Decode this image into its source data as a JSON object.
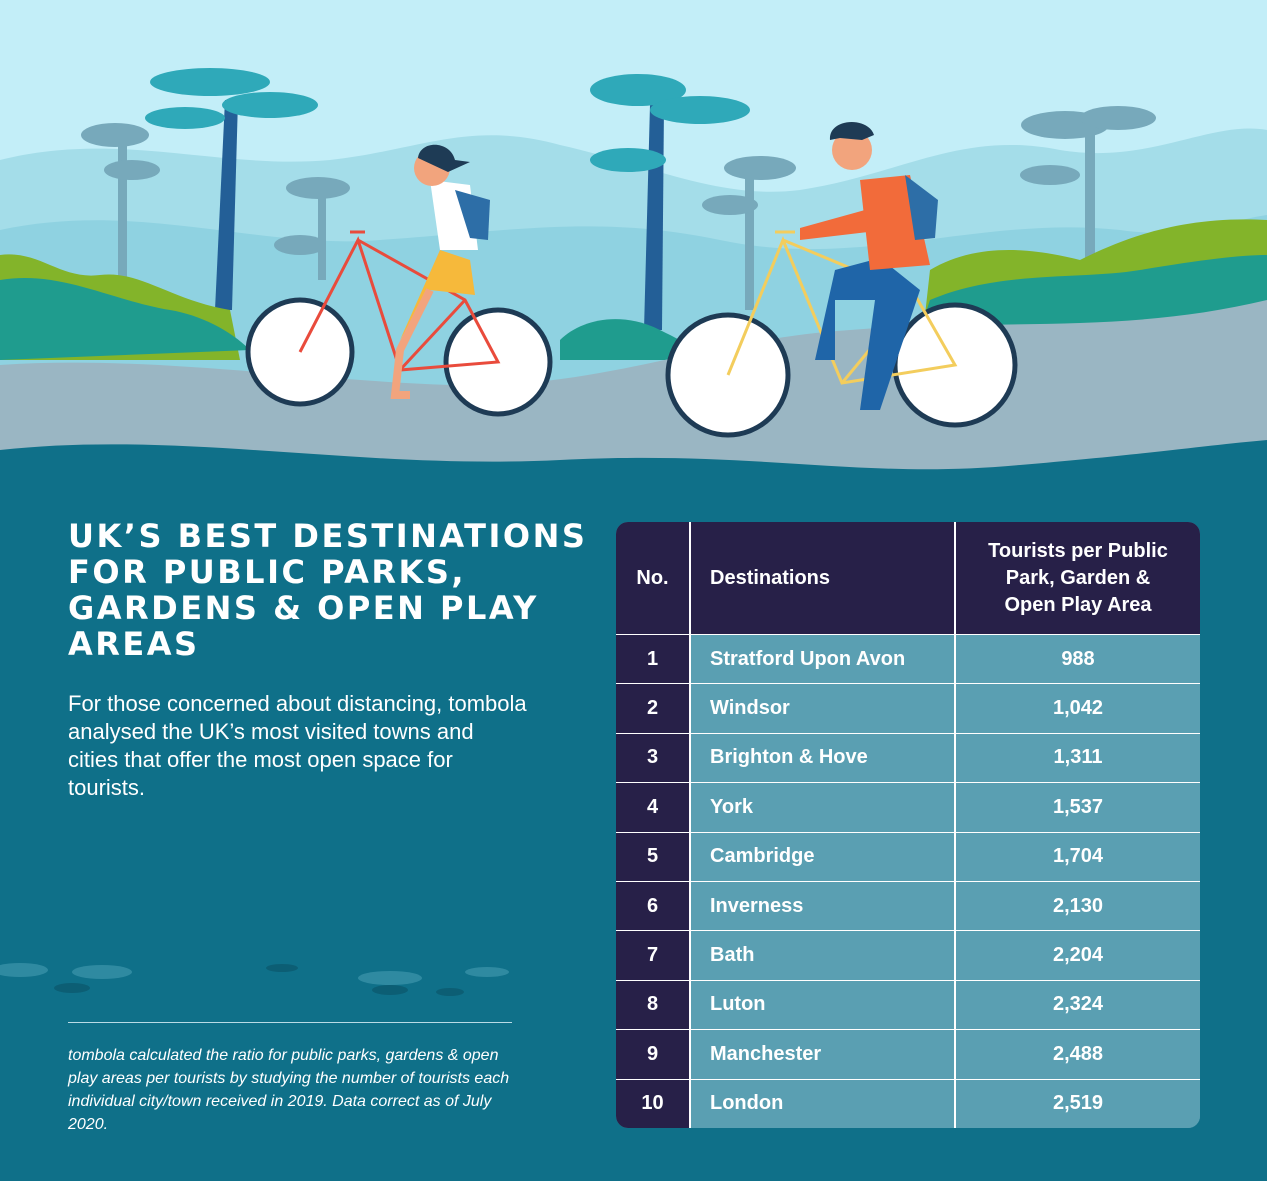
{
  "heading": "UK’s best destinations for public parks, gardens & open play areas",
  "intro": "For those concerned about distancing, tombola analysed the UK’s most visited towns and cities that offer the most open space for tourists.",
  "footnote": "tombola calculated the ratio for public parks, gardens & open play areas per tourists by studying the number of tourists each individual city/town received in 2019. Data correct as of July 2020.",
  "table": {
    "headers": {
      "no": "No.",
      "destination": "Destinations",
      "ratio": "Tourists per Public\nPark, Garden &\nOpen Play Area"
    },
    "rows": [
      {
        "no": "1",
        "destination": "Stratford Upon Avon",
        "ratio": "988"
      },
      {
        "no": "2",
        "destination": "Windsor",
        "ratio": "1,042"
      },
      {
        "no": "3",
        "destination": "Brighton & Hove",
        "ratio": "1,311"
      },
      {
        "no": "4",
        "destination": "York",
        "ratio": "1,537"
      },
      {
        "no": "5",
        "destination": "Cambridge",
        "ratio": "1,704"
      },
      {
        "no": "6",
        "destination": "Inverness",
        "ratio": "2,130"
      },
      {
        "no": "7",
        "destination": "Bath",
        "ratio": "2,204"
      },
      {
        "no": "8",
        "destination": "Luton",
        "ratio": "2,324"
      },
      {
        "no": "9",
        "destination": "Manchester",
        "ratio": "2,488"
      },
      {
        "no": "10",
        "destination": "London",
        "ratio": "2,519"
      }
    ]
  },
  "colors": {
    "background": "#0f7089",
    "table_header": "#272048",
    "table_body": "#5a9fb2",
    "sky": "#c3eef8",
    "path": "#9ab6c3"
  }
}
